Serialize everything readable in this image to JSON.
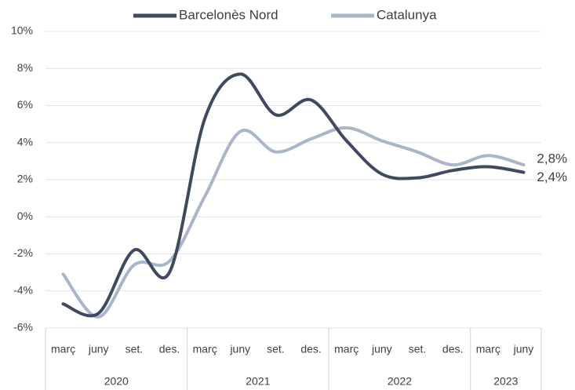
{
  "chart_data": {
    "type": "line",
    "groups": [
      {
        "name": "2020",
        "categories": [
          "març",
          "juny",
          "set.",
          "des."
        ]
      },
      {
        "name": "2021",
        "categories": [
          "març",
          "juny",
          "set.",
          "des."
        ]
      },
      {
        "name": "2022",
        "categories": [
          "març",
          "juny",
          "set.",
          "des."
        ]
      },
      {
        "name": "2023",
        "categories": [
          "març",
          "juny"
        ]
      }
    ],
    "series": [
      {
        "name": "Barcelonès Nord",
        "color": "#3d4a60",
        "values": [
          -4.7,
          -5.2,
          -1.8,
          -3.0,
          5.3,
          7.7,
          5.5,
          6.3,
          4.1,
          2.3,
          2.1,
          2.5,
          2.7,
          2.4
        ],
        "value_labels": [
          null,
          null,
          null,
          null,
          null,
          null,
          null,
          null,
          null,
          null,
          null,
          null,
          null,
          "2,4%"
        ]
      },
      {
        "name": "Catalunya",
        "color": "#a9b5c9",
        "values": [
          -3.1,
          -5.4,
          -2.6,
          -2.4,
          1.1,
          4.6,
          3.5,
          4.2,
          4.8,
          4.1,
          3.5,
          2.8,
          3.3,
          2.8
        ],
        "value_labels": [
          null,
          null,
          null,
          null,
          null,
          null,
          null,
          null,
          null,
          null,
          null,
          null,
          null,
          "2,8%"
        ]
      }
    ],
    "ylim": [
      -6,
      10
    ],
    "yticks": [
      {
        "value": -6,
        "label": "-6%"
      },
      {
        "value": -4,
        "label": "-4%"
      },
      {
        "value": -2,
        "label": "-2%"
      },
      {
        "value": 0,
        "label": "0%"
      },
      {
        "value": 2,
        "label": "2%"
      },
      {
        "value": 4,
        "label": "4%"
      },
      {
        "value": 6,
        "label": "6%"
      },
      {
        "value": 8,
        "label": "8%"
      },
      {
        "value": 10,
        "label": "10%"
      }
    ],
    "grid": true,
    "legend": "top"
  }
}
